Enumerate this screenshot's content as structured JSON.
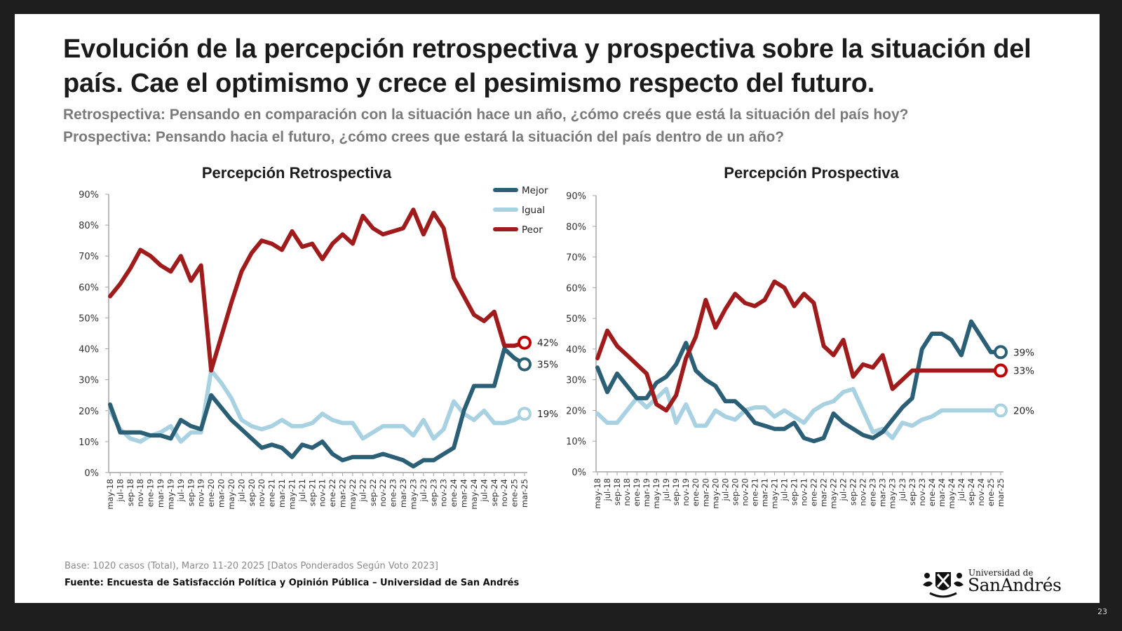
{
  "slide": {
    "title": "Evolución de la percepción retrospectiva y prospectiva sobre la situación del país. Cae el optimismo y crece el pesimismo respecto del futuro.",
    "subtitle_line1": "Retrospectiva: Pensando en comparación con la situación hace un año, ¿cómo creés que está la situación del país hoy?",
    "subtitle_line2": "Prospectiva: Pensando hacia el futuro, ¿cómo crees que estará la situación del país dentro de un año?",
    "footer_base": "Base: 1020 casos (Total), Marzo 11-20 2025 [Datos Ponderados Según Voto 2023]",
    "footer_source": "Fuente: Encuesta de Satisfacción Política y Opinión Pública – Universidad de San Andrés",
    "logo_small": "Universidad de",
    "logo_big": "SanAndrés",
    "logo_icon": "crest-icon",
    "page_number": "23"
  },
  "colors": {
    "mejor": "#2a5f75",
    "igual": "#a8d1e2",
    "peor": "#a01c1c",
    "axis": "#a6a6a6",
    "end_marker_peor": "#c00000"
  },
  "chart_data": [
    {
      "type": "line",
      "title": "Percepción Retrospectiva",
      "xlabel": "",
      "ylabel": "",
      "ylim": [
        0,
        90
      ],
      "yticks": [
        "0%",
        "10%",
        "20%",
        "30%",
        "40%",
        "50%",
        "60%",
        "70%",
        "80%",
        "90%"
      ],
      "grid": false,
      "legend": "top-right",
      "categories": [
        "may-18",
        "jul-18",
        "sep-18",
        "nov-18",
        "ene-19",
        "mar-19",
        "may-19",
        "jul-19",
        "sep-19",
        "nov-19",
        "ene-20",
        "mar-20",
        "may-20",
        "jul-20",
        "sep-20",
        "nov-20",
        "ene-21",
        "mar-21",
        "may-21",
        "jul-21",
        "sep-21",
        "nov-21",
        "ene-22",
        "mar-22",
        "may-22",
        "jul-22",
        "sep-22",
        "nov-22",
        "ene-23",
        "mar-23",
        "may-23",
        "jul-23",
        "sep-23",
        "nov-23",
        "ene-24",
        "mar-24",
        "may-24",
        "jul-24",
        "sep-24",
        "nov-24",
        "ene-25",
        "mar-25"
      ],
      "series": [
        {
          "name": "Mejor",
          "values": [
            22,
            13,
            13,
            13,
            12,
            12,
            11,
            17,
            15,
            14,
            25,
            21,
            17,
            14,
            11,
            8,
            9,
            8,
            5,
            9,
            8,
            10,
            6,
            4,
            5,
            5,
            5,
            6,
            5,
            4,
            2,
            4,
            4,
            6,
            8,
            20,
            28,
            28,
            28,
            40,
            37,
            35
          ]
        },
        {
          "name": "Igual",
          "values": [
            20,
            14,
            11,
            10,
            12,
            13,
            15,
            10,
            13,
            13,
            33,
            29,
            24,
            17,
            15,
            14,
            15,
            17,
            15,
            15,
            16,
            19,
            17,
            16,
            16,
            11,
            13,
            15,
            15,
            15,
            12,
            17,
            11,
            14,
            23,
            19,
            17,
            20,
            16,
            16,
            17,
            19
          ]
        },
        {
          "name": "Peor",
          "values": [
            57,
            61,
            66,
            72,
            70,
            67,
            65,
            70,
            62,
            67,
            33,
            44,
            55,
            65,
            71,
            75,
            74,
            72,
            78,
            73,
            74,
            69,
            74,
            77,
            74,
            83,
            79,
            77,
            78,
            79,
            85,
            77,
            84,
            79,
            63,
            57,
            51,
            49,
            52,
            41,
            41,
            42
          ]
        }
      ],
      "end_labels": [
        {
          "series": "Peor",
          "label": "42%"
        },
        {
          "series": "Mejor",
          "label": "35%"
        },
        {
          "series": "Igual",
          "label": "19%"
        }
      ]
    },
    {
      "type": "line",
      "title": "Percepción Prospectiva",
      "xlabel": "",
      "ylabel": "",
      "ylim": [
        0,
        90
      ],
      "yticks": [
        "0%",
        "10%",
        "20%",
        "30%",
        "40%",
        "50%",
        "60%",
        "70%",
        "80%",
        "90%"
      ],
      "grid": false,
      "legend": "none",
      "categories": [
        "may-18",
        "jul-18",
        "sep-18",
        "nov-18",
        "ene-19",
        "mar-19",
        "may-19",
        "jul-19",
        "sep-19",
        "nov-19",
        "ene-20",
        "mar-20",
        "may-20",
        "jul-20",
        "sep-20",
        "nov-20",
        "ene-21",
        "mar-21",
        "may-21",
        "jul-21",
        "sep-21",
        "nov-21",
        "ene-22",
        "mar-22",
        "may-22",
        "jul-22",
        "sep-22",
        "nov-22",
        "ene-23",
        "mar-23",
        "may-23",
        "jul-23",
        "sep-23",
        "nov-23",
        "ene-24",
        "mar-24",
        "may-24",
        "jul-24",
        "sep-24",
        "nov-24",
        "ene-25",
        "mar-25"
      ],
      "series": [
        {
          "name": "Mejor",
          "values": [
            34,
            26,
            32,
            28,
            24,
            24,
            29,
            31,
            35,
            42,
            33,
            30,
            28,
            23,
            23,
            20,
            16,
            15,
            14,
            14,
            16,
            11,
            10,
            11,
            19,
            16,
            14,
            12,
            11,
            13,
            17,
            21,
            24,
            40,
            45,
            45,
            43,
            38,
            49,
            44,
            39,
            39
          ]
        },
        {
          "name": "Igual",
          "values": [
            19,
            16,
            16,
            20,
            24,
            21,
            24,
            27,
            16,
            22,
            15,
            15,
            20,
            18,
            17,
            20,
            21,
            21,
            18,
            20,
            18,
            16,
            20,
            22,
            23,
            26,
            27,
            20,
            13,
            14,
            11,
            16,
            15,
            17,
            18,
            20,
            20,
            20,
            20,
            20,
            20,
            20
          ]
        },
        {
          "name": "Peor",
          "values": [
            37,
            46,
            41,
            38,
            35,
            32,
            22,
            20,
            25,
            37,
            44,
            56,
            47,
            53,
            58,
            55,
            54,
            56,
            62,
            60,
            54,
            58,
            55,
            41,
            38,
            43,
            31,
            35,
            34,
            38,
            27,
            30,
            33,
            33,
            33,
            33,
            33,
            33,
            33,
            33,
            33,
            33
          ]
        }
      ],
      "end_labels": [
        {
          "series": "Mejor",
          "label": "39%"
        },
        {
          "series": "Peor",
          "label": "33%"
        },
        {
          "series": "Igual",
          "label": "20%"
        }
      ]
    }
  ]
}
